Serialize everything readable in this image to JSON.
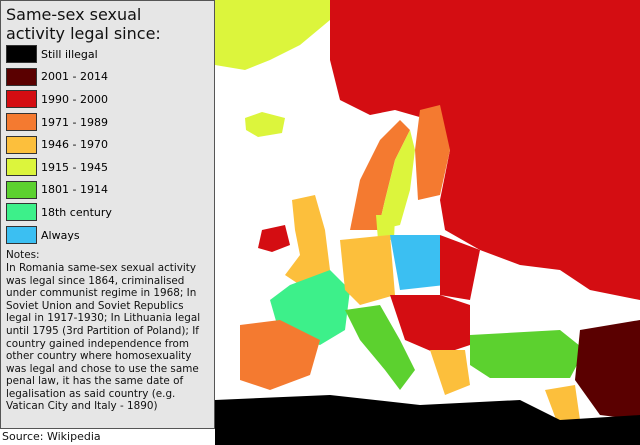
{
  "legend": {
    "title": [
      "Same-sex  sexual",
      "activity legal since:"
    ],
    "items": [
      {
        "label": "Still illegal",
        "color": "#000000"
      },
      {
        "label": "2001 - 2014",
        "color": "#5a0000"
      },
      {
        "label": "1990 - 2000",
        "color": "#d40d12"
      },
      {
        "label": "1971 - 1989",
        "color": "#f47a30"
      },
      {
        "label": "1946 - 1970",
        "color": "#fcbf3c"
      },
      {
        "label": "1915 - 1945",
        "color": "#dcf53c"
      },
      {
        "label": "1801 - 1914",
        "color": "#5cd12f"
      },
      {
        "label": "18th century",
        "color": "#3df08a"
      },
      {
        "label": "Always",
        "color": "#3bbff2"
      }
    ]
  },
  "notes": [
    "Notes:",
    "In Romania same-sex sexual activity",
    "was legal since 1864, criminalised",
    "under communist regime in 1968; In",
    "Soviet Union and Soviet Republics",
    "legal in 1917-1930; In Lithuania legal",
    "until 1795 (3rd Partition of Poland); If",
    "country gained independence from",
    "other country where homosexuality",
    "was legal and chose to use the same",
    "penal law, it has the same date of",
    "legalisation as said country (e.g.",
    "Vatican City and Italy - 1890)"
  ],
  "source": "Source: Wikipedia"
}
